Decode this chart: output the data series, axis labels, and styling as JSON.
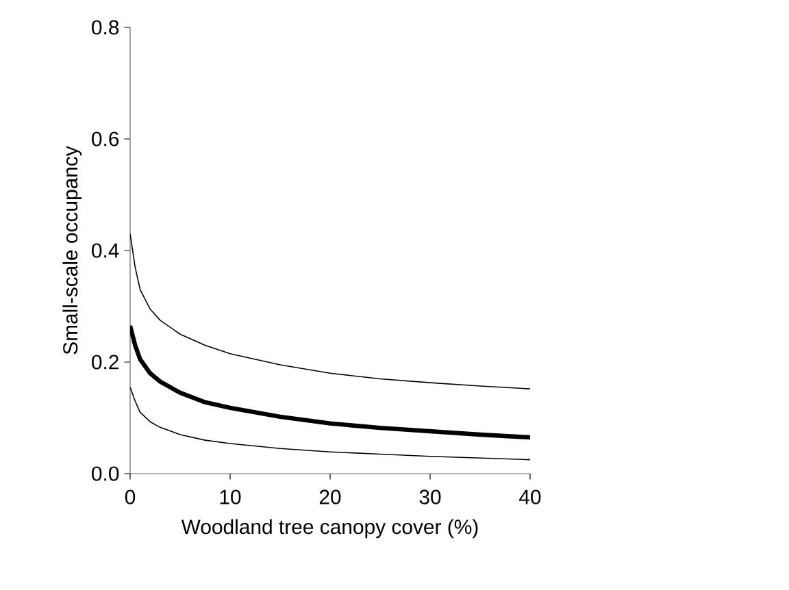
{
  "chart_data": {
    "type": "line",
    "xlabel": "Woodland tree canopy cover (%)",
    "ylabel": "Small-scale occupancy",
    "x": [
      0,
      0.5,
      1,
      2,
      3,
      5,
      7.5,
      10,
      15,
      20,
      25,
      30,
      35,
      40
    ],
    "series": [
      {
        "color": "#000000",
        "values": [
          0.265,
          0.23,
          0.205,
          0.18,
          0.165,
          0.145,
          0.128,
          0.118,
          0.102,
          0.09,
          0.082,
          0.076,
          0.07,
          0.065
        ]
      },
      {
        "color": "#000000",
        "values": [
          0.43,
          0.37,
          0.33,
          0.295,
          0.275,
          0.25,
          0.23,
          0.215,
          0.195,
          0.18,
          0.17,
          0.163,
          0.157,
          0.152
        ]
      },
      {
        "color": "#000000",
        "values": [
          0.155,
          0.13,
          0.11,
          0.093,
          0.083,
          0.07,
          0.06,
          0.054,
          0.045,
          0.039,
          0.035,
          0.031,
          0.028,
          0.025
        ]
      }
    ],
    "xlim": [
      0,
      40
    ],
    "xticks": [
      0,
      10,
      20,
      30,
      40
    ],
    "ylim": [
      0,
      0.8
    ],
    "yticks": [
      {
        "value": 0,
        "label": "0.0"
      },
      {
        "value": 0.2,
        "label": "0.2"
      },
      {
        "value": 0.4,
        "label": "0.4"
      },
      {
        "value": 0.6,
        "label": "0.6"
      },
      {
        "value": 0.8,
        "label": "0.8"
      }
    ],
    "marker": "none",
    "line_style": "solid"
  }
}
